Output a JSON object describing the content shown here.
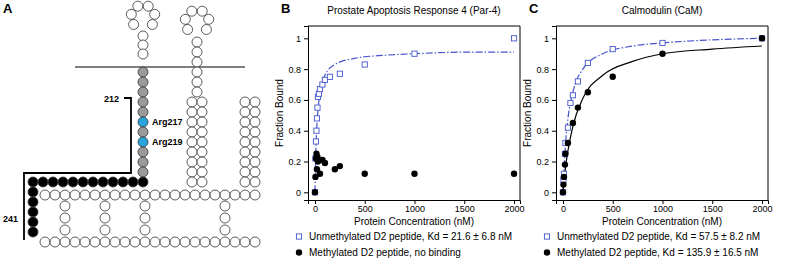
{
  "diagram": {
    "panel": "A",
    "labels": [
      {
        "text": "212"
      },
      {
        "text": "Arg217"
      },
      {
        "text": "Arg219"
      },
      {
        "text": "241"
      }
    ]
  },
  "chart_data": [
    {
      "type": "scatter",
      "title": "Prostate Apoptosis Response 4 (Par-4)",
      "annotations": [
        {
          "text": "B"
        }
      ],
      "x_label": "Protein Concentration (nM)",
      "y_label": "Fraction Bound",
      "xlim": [
        -70,
        2060
      ],
      "ylim": [
        -0.05,
        1.08
      ],
      "xticks": [
        0,
        500,
        1000,
        1500,
        2000
      ],
      "yticks": [
        0,
        0.2,
        0.4,
        0.6,
        0.8,
        1
      ],
      "grid": false,
      "legend": "bottom",
      "series": [
        {
          "name": "Unmethylated D2 peptide, Kd = 21.6 ± 6.8 nM",
          "type": "scatter",
          "marker": "square_open",
          "color": "#4455cc",
          "x": [
            0,
            5,
            10,
            15,
            20,
            25,
            30,
            40,
            50,
            75,
            100,
            150,
            250,
            500,
            1000,
            2000
          ],
          "values": [
            0,
            0.22,
            0.33,
            0.4,
            0.48,
            0.55,
            0.62,
            0.64,
            0.67,
            0.7,
            0.73,
            0.75,
            0.77,
            0.83,
            0.9,
            1.0
          ]
        },
        {
          "name": "Methylated D2 peptide, no binding",
          "type": "scatter",
          "marker": "circle",
          "color": "#000000",
          "x": [
            0,
            5,
            10,
            15,
            20,
            25,
            30,
            50,
            75,
            100,
            200,
            250,
            500,
            1000,
            2000
          ],
          "values": [
            0,
            0.1,
            0.22,
            0.25,
            0.15,
            0.23,
            0.2,
            0.12,
            0.21,
            0.19,
            0.15,
            0.17,
            0.12,
            0.12,
            0.12
          ]
        },
        {
          "type": "line",
          "line_style": "dashdot",
          "color": "#4455cc",
          "x": [
            0,
            10,
            25,
            50,
            100,
            200,
            400,
            700,
            1000,
            1500,
            2000
          ],
          "values": [
            0,
            0.29,
            0.49,
            0.64,
            0.76,
            0.83,
            0.87,
            0.89,
            0.9,
            0.91,
            0.91
          ]
        }
      ]
    },
    {
      "type": "scatter",
      "title": "Calmodulin (CaM)",
      "annotations": [
        {
          "text": "C"
        }
      ],
      "x_label": "Protein Concentration (nM)",
      "y_label": "Fraction Bound",
      "xlim": [
        -70,
        2060
      ],
      "ylim": [
        -0.05,
        1.08
      ],
      "xticks": [
        0,
        500,
        1000,
        1500,
        2000
      ],
      "yticks": [
        0,
        0.2,
        0.4,
        0.6,
        0.8,
        1
      ],
      "grid": false,
      "legend": "bottom",
      "series": [
        {
          "name": "Unmethylated D2 peptide, Kd = 57.5 ± 8.2 nM",
          "type": "scatter",
          "marker": "square_open",
          "color": "#4455cc",
          "x": [
            0,
            5,
            10,
            20,
            25,
            50,
            75,
            100,
            150,
            250,
            500,
            1000,
            2000
          ],
          "values": [
            0,
            0.08,
            0.12,
            0.25,
            0.32,
            0.42,
            0.58,
            0.63,
            0.72,
            0.84,
            0.93,
            0.97,
            1.0
          ]
        },
        {
          "name": "Methylated D2 peptide, Kd = 135.9 ± 16.5 nM",
          "type": "scatter",
          "marker": "circle",
          "color": "#000000",
          "x": [
            0,
            5,
            10,
            20,
            25,
            50,
            100,
            150,
            250,
            500,
            1000,
            2000
          ],
          "values": [
            0,
            0.05,
            0.1,
            0.18,
            0.25,
            0.32,
            0.45,
            0.55,
            0.65,
            0.75,
            0.9,
            1.0
          ]
        },
        {
          "type": "line",
          "line_style": "dashdot",
          "color": "#4455cc",
          "x": [
            0,
            25,
            50,
            100,
            200,
            400,
            700,
            1000,
            1500,
            2000
          ],
          "values": [
            0,
            0.31,
            0.48,
            0.65,
            0.8,
            0.9,
            0.95,
            0.97,
            0.99,
            1.0
          ]
        },
        {
          "type": "line",
          "line_style": "solid",
          "color": "#000000",
          "x": [
            0,
            25,
            50,
            100,
            200,
            400,
            700,
            1000,
            1500,
            2000
          ],
          "values": [
            0,
            0.16,
            0.27,
            0.43,
            0.61,
            0.76,
            0.85,
            0.9,
            0.93,
            0.95
          ]
        }
      ]
    }
  ]
}
